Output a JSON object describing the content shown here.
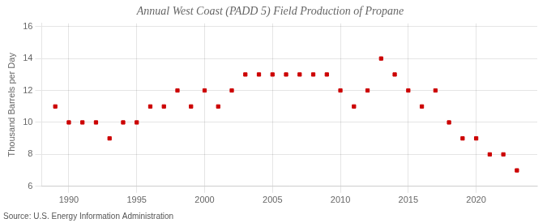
{
  "chart_data": {
    "type": "scatter",
    "title": "Annual West Coast (PADD 5) Field Production of Propane",
    "ylabel": "Thousand Barrels per Day",
    "source": "Source: U.S. Energy Information Administration",
    "x": [
      1989,
      1990,
      1991,
      1992,
      1993,
      1994,
      1995,
      1996,
      1997,
      1998,
      1999,
      2000,
      2001,
      2002,
      2003,
      2004,
      2005,
      2006,
      2007,
      2008,
      2009,
      2010,
      2011,
      2012,
      2013,
      2014,
      2015,
      2016,
      2017,
      2018,
      2019,
      2020,
      2021,
      2022,
      2023
    ],
    "values": [
      11,
      10,
      10,
      10,
      9,
      10,
      10,
      11,
      11,
      12,
      11,
      12,
      11,
      12,
      13,
      13,
      13,
      13,
      13,
      13,
      13,
      12,
      11,
      12,
      14,
      13,
      12,
      11,
      12,
      10,
      9,
      9,
      8,
      8,
      7
    ],
    "color": "#cc0000",
    "marker": "square",
    "xlim": [
      1988.0,
      2024.5
    ],
    "ylim": [
      6,
      16.2
    ],
    "xticks": [
      1990,
      1995,
      2000,
      2005,
      2010,
      2015,
      2020
    ],
    "yticks": [
      6,
      8,
      10,
      12,
      14,
      16
    ],
    "grid": true
  }
}
